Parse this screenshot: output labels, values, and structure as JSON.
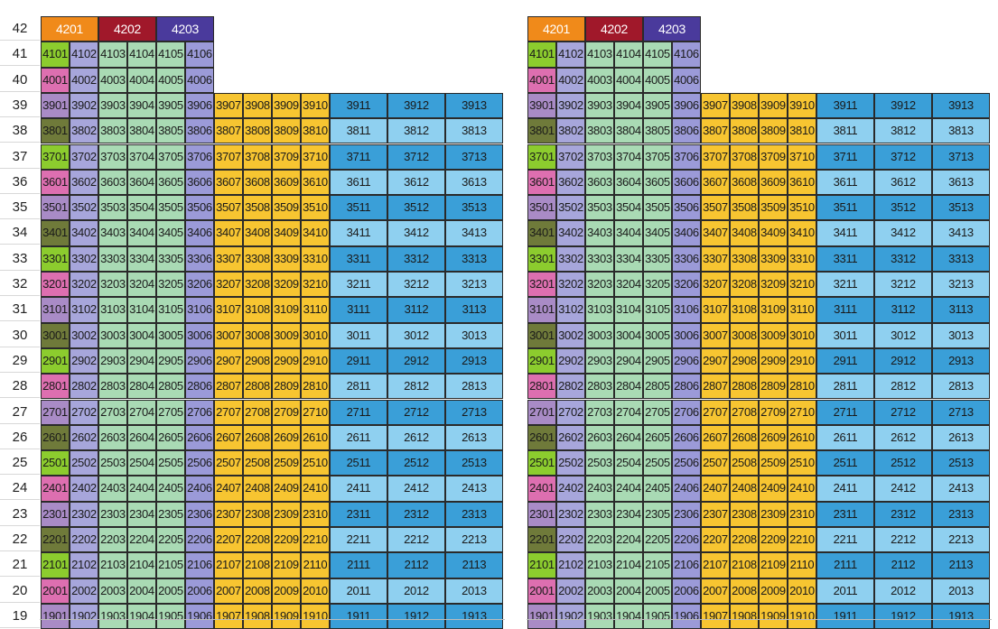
{
  "floors": [
    "42",
    "41",
    "40",
    "39",
    "38",
    "37",
    "36",
    "35",
    "34",
    "33",
    "32",
    "31",
    "30",
    "29",
    "28",
    "27",
    "26",
    "25",
    "24",
    "23",
    "22",
    "21",
    "20",
    "19"
  ],
  "top_floor_units": [
    "4201",
    "4202",
    "4203"
  ],
  "floor41_units": [
    "4101",
    "4102",
    "4103",
    "4104",
    "4105",
    "4106"
  ],
  "floor40_units": [
    "4001",
    "4002",
    "4003",
    "4004",
    "4005",
    "4006"
  ],
  "regular_floor_numbers": [
    "39",
    "38",
    "37",
    "36",
    "35",
    "34",
    "33",
    "32",
    "31",
    "30",
    "29",
    "28",
    "27",
    "26",
    "25",
    "24",
    "23",
    "22",
    "21",
    "20",
    "19"
  ],
  "unit_suffixes": [
    "01",
    "02",
    "03",
    "04",
    "05",
    "06",
    "07",
    "08",
    "09",
    "10",
    "11",
    "12",
    "13"
  ],
  "colors": {
    "top_4201": "#f08a1a",
    "top_4202": "#a0182a",
    "top_4203": "#4a3a9c",
    "col01_green": "#8ccc2e",
    "col01_pink": "#dd6fb0",
    "col01_purple": "#a98bc6",
    "col01_olive": "#6f7a3a",
    "col02": "#a7a6db",
    "col03_05": "#a9dab4",
    "col06": "#9b9ad8",
    "col07_10": "#f7c531",
    "col11_13_dark": "#3a9fd8",
    "col11_13_light": "#8fd0f0",
    "floor41_col03_06": "#a9dab4"
  },
  "col01_pattern": {
    "41": "green",
    "40": "pink",
    "39": "purple",
    "38": "olive",
    "37": "green",
    "36": "pink",
    "35": "purple",
    "34": "olive",
    "33": "green",
    "32": "pink",
    "31": "purple",
    "30": "olive",
    "29": "green",
    "28": "pink",
    "27": "purple",
    "26": "olive",
    "25": "green",
    "24": "pink",
    "23": "purple",
    "22": "olive",
    "21": "green",
    "20": "pink",
    "19": "purple"
  }
}
